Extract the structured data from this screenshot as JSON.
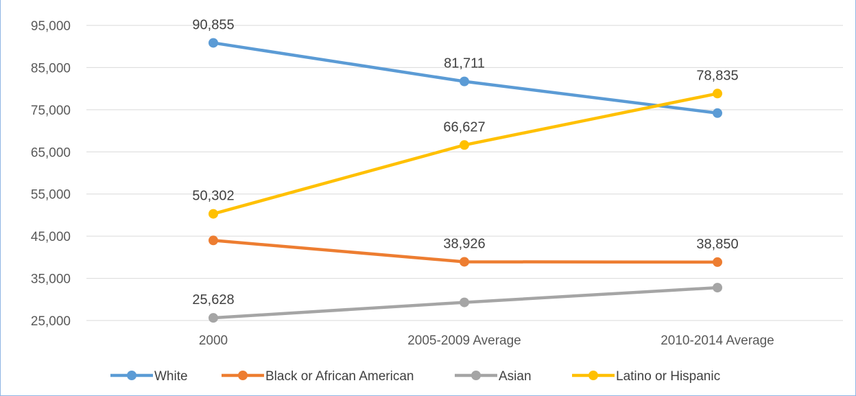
{
  "chart_data": {
    "type": "line",
    "title": "",
    "categories": [
      "2000",
      "2005-2009 Average",
      "2010-2014 Average"
    ],
    "ylim": [
      25000,
      95000
    ],
    "yticks": [
      25000,
      35000,
      45000,
      55000,
      65000,
      75000,
      85000,
      95000
    ],
    "ytick_labels": [
      "25,000",
      "35,000",
      "45,000",
      "55,000",
      "65,000",
      "75,000",
      "85,000",
      "95,000"
    ],
    "grid": true,
    "legend_position": "bottom",
    "series": [
      {
        "name": "White",
        "color": "#5b9bd5",
        "values": [
          90855,
          81711,
          74200
        ],
        "labels": [
          "90,855",
          "81,711",
          ""
        ]
      },
      {
        "name": "Black or African American",
        "color": "#ed7d31",
        "values": [
          44000,
          38926,
          38850
        ],
        "labels": [
          "",
          "38,926",
          "38,850"
        ]
      },
      {
        "name": "Asian",
        "color": "#a5a5a5",
        "values": [
          25628,
          29300,
          32800
        ],
        "labels": [
          "25,628",
          "",
          ""
        ]
      },
      {
        "name": "Latino or Hispanic",
        "color": "#ffc000",
        "values": [
          50302,
          66627,
          78835
        ],
        "labels": [
          "50,302",
          "66,627",
          "78,835"
        ]
      }
    ]
  }
}
